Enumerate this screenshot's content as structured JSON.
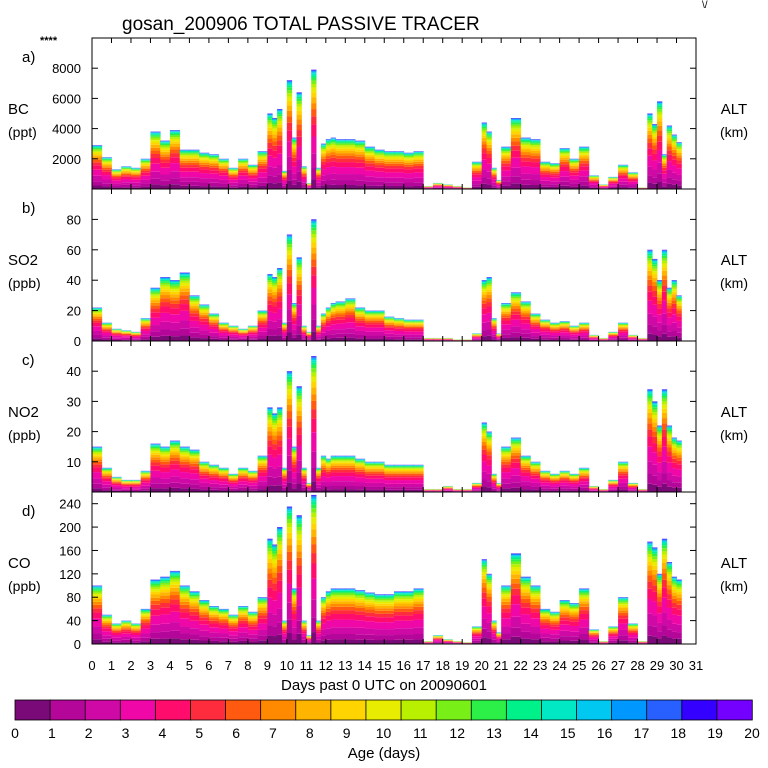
{
  "figure": {
    "title": "gosan_200906 TOTAL PASSIVE TRACER",
    "corner_mark": "****",
    "top_right_mark": "\\/",
    "xlabel": "Days past 0 UTC on 20090601",
    "x_ticks": [
      "0",
      "1",
      "2",
      "3",
      "4",
      "5",
      "6",
      "7",
      "8",
      "9",
      "10",
      "11",
      "12",
      "13",
      "14",
      "15",
      "16",
      "17",
      "18",
      "19",
      "20",
      "21",
      "22",
      "23",
      "24",
      "25",
      "26",
      "27",
      "28",
      "29",
      "30",
      "31"
    ],
    "xlim": [
      0,
      31
    ]
  },
  "colorbar": {
    "label": "Age (days)",
    "tick_labels": [
      "0",
      "1",
      "2",
      "3",
      "4",
      "5",
      "6",
      "7",
      "8",
      "9",
      "10",
      "11",
      "12",
      "13",
      "14",
      "15",
      "16",
      "17",
      "18",
      "19",
      "20"
    ],
    "colors": [
      "#7a0a78",
      "#b4079a",
      "#cf09a6",
      "#f007a8",
      "#ff0c6c",
      "#ff2c3e",
      "#ff5a10",
      "#ff8a00",
      "#ffb400",
      "#ffd400",
      "#e8ec00",
      "#b8f000",
      "#78f018",
      "#2cf048",
      "#00f08a",
      "#00e8c4",
      "#00c8f0",
      "#0098ff",
      "#2860ff",
      "#3400ff",
      "#7400ff"
    ]
  },
  "chart_data": [
    {
      "type": "area",
      "panel_letter": "a)",
      "species": "BC",
      "unit": "(ppt)",
      "right_label": "ALT",
      "right_unit": "(km)",
      "y_tick_labels": [
        "2000",
        "4000",
        "6000",
        "8000"
      ],
      "y_ticks": [
        2000,
        4000,
        6000,
        8000
      ],
      "ylim": [
        0,
        10000
      ],
      "x": [
        0,
        0.5,
        1,
        1.5,
        2,
        2.5,
        3,
        3.5,
        4,
        4.5,
        5,
        5.5,
        6,
        6.5,
        7,
        7.5,
        8,
        8.5,
        9,
        9.25,
        9.5,
        9.75,
        10,
        10.25,
        10.5,
        10.75,
        11,
        11.25,
        11.5,
        11.75,
        12,
        12.25,
        12.5,
        13,
        13.5,
        14,
        14.5,
        15,
        15.5,
        16,
        16.5,
        17,
        17.5,
        18,
        18.5,
        19,
        19.5,
        20,
        20.25,
        20.5,
        20.75,
        21,
        21.5,
        22,
        22.5,
        23,
        23.5,
        24,
        24.5,
        25,
        25.5,
        26,
        26.5,
        27,
        27.5,
        28,
        28.5,
        28.75,
        29,
        29.25,
        29.5,
        29.75,
        30
      ],
      "values": [
        2900,
        2100,
        1300,
        1500,
        1400,
        2000,
        3800,
        3200,
        3900,
        2600,
        2600,
        2400,
        2300,
        2000,
        1400,
        2000,
        1600,
        2500,
        5000,
        4700,
        5300,
        1200,
        7200,
        3400,
        6400,
        1500,
        400,
        7900,
        1400,
        3000,
        3300,
        3400,
        3300,
        3300,
        3200,
        2800,
        2600,
        2500,
        2500,
        2400,
        2500,
        200,
        400,
        300,
        200,
        100,
        1800,
        4400,
        3800,
        1400,
        600,
        2800,
        4700,
        3400,
        3300,
        1800,
        1700,
        2700,
        2000,
        2800,
        900,
        300,
        800,
        1600,
        1100,
        100,
        5000,
        4300,
        5800,
        2300,
        4200,
        3600,
        3100
      ]
    },
    {
      "type": "area",
      "panel_letter": "b)",
      "species": "SO2",
      "unit": "(ppb)",
      "right_label": "ALT",
      "right_unit": "(km)",
      "y_tick_labels": [
        "0",
        "20",
        "40",
        "60",
        "80"
      ],
      "y_ticks": [
        0,
        20,
        40,
        60,
        80
      ],
      "ylim": [
        0,
        100
      ],
      "x": [
        0,
        0.5,
        1,
        1.5,
        2,
        2.5,
        3,
        3.5,
        4,
        4.5,
        5,
        5.5,
        6,
        6.5,
        7,
        7.5,
        8,
        8.5,
        9,
        9.25,
        9.5,
        9.75,
        10,
        10.25,
        10.5,
        10.75,
        11,
        11.25,
        11.5,
        11.75,
        12,
        12.25,
        12.5,
        13,
        13.5,
        14,
        14.5,
        15,
        15.5,
        16,
        16.5,
        17,
        17.5,
        18,
        18.5,
        19,
        19.5,
        20,
        20.25,
        20.5,
        20.75,
        21,
        21.5,
        22,
        22.5,
        23,
        23.5,
        24,
        24.5,
        25,
        25.5,
        26,
        26.5,
        27,
        27.5,
        28,
        28.5,
        28.75,
        29,
        29.25,
        29.5,
        29.75,
        30
      ],
      "values": [
        22,
        12,
        8,
        7,
        6,
        15,
        35,
        42,
        40,
        45,
        30,
        24,
        18,
        12,
        10,
        8,
        10,
        20,
        44,
        42,
        48,
        12,
        70,
        25,
        55,
        10,
        6,
        80,
        10,
        18,
        22,
        25,
        26,
        28,
        22,
        20,
        20,
        16,
        15,
        14,
        14,
        2,
        2,
        2,
        1,
        1,
        5,
        40,
        42,
        15,
        5,
        25,
        32,
        26,
        18,
        14,
        12,
        13,
        10,
        12,
        4,
        2,
        6,
        12,
        4,
        2,
        60,
        54,
        40,
        60,
        35,
        40,
        30
      ]
    },
    {
      "type": "area",
      "panel_letter": "c)",
      "species": "NO2",
      "unit": "(ppb)",
      "right_label": "ALT",
      "right_unit": "(km)",
      "y_tick_labels": [
        "10",
        "20",
        "30",
        "40"
      ],
      "y_ticks": [
        10,
        20,
        30,
        40
      ],
      "ylim": [
        0,
        50
      ],
      "x": [
        0,
        0.5,
        1,
        1.5,
        2,
        2.5,
        3,
        3.5,
        4,
        4.5,
        5,
        5.5,
        6,
        6.5,
        7,
        7.5,
        8,
        8.5,
        9,
        9.25,
        9.5,
        9.75,
        10,
        10.25,
        10.5,
        10.75,
        11,
        11.25,
        11.5,
        11.75,
        12,
        12.25,
        12.5,
        13,
        13.5,
        14,
        14.5,
        15,
        15.5,
        16,
        16.5,
        17,
        17.5,
        18,
        18.5,
        19,
        19.5,
        20,
        20.25,
        20.5,
        20.75,
        21,
        21.5,
        22,
        22.5,
        23,
        23.5,
        24,
        24.5,
        25,
        25.5,
        26,
        26.5,
        27,
        27.5,
        28,
        28.5,
        28.75,
        29,
        29.25,
        29.5,
        29.75,
        30
      ],
      "values": [
        15,
        8,
        5,
        4,
        4,
        7,
        16,
        15,
        17,
        15,
        14,
        10,
        9,
        8,
        6,
        8,
        7,
        12,
        28,
        26,
        28,
        8,
        40,
        15,
        35,
        8,
        3,
        45,
        8,
        12,
        11,
        12,
        12,
        12,
        11,
        10,
        10,
        9,
        9,
        9,
        9,
        1,
        1,
        2,
        1,
        1,
        3,
        23,
        20,
        6,
        3,
        15,
        18,
        12,
        10,
        7,
        6,
        7,
        6,
        8,
        2,
        1,
        4,
        10,
        3,
        1,
        34,
        30,
        22,
        34,
        22,
        18,
        17
      ]
    },
    {
      "type": "area",
      "panel_letter": "d)",
      "species": "CO",
      "unit": "(ppb)",
      "right_label": "ALT",
      "right_unit": "(km)",
      "y_tick_labels": [
        "0",
        "40",
        "80",
        "120",
        "160",
        "200",
        "240"
      ],
      "y_ticks": [
        0,
        40,
        80,
        120,
        160,
        200,
        240
      ],
      "ylim": [
        0,
        260
      ],
      "x": [
        0,
        0.5,
        1,
        1.5,
        2,
        2.5,
        3,
        3.5,
        4,
        4.5,
        5,
        5.5,
        6,
        6.5,
        7,
        7.5,
        8,
        8.5,
        9,
        9.25,
        9.5,
        9.75,
        10,
        10.25,
        10.5,
        10.75,
        11,
        11.25,
        11.5,
        11.75,
        12,
        12.25,
        12.5,
        13,
        13.5,
        14,
        14.5,
        15,
        15.5,
        16,
        16.5,
        17,
        17.5,
        18,
        18.5,
        19,
        19.5,
        20,
        20.25,
        20.5,
        20.75,
        21,
        21.5,
        22,
        22.5,
        23,
        23.5,
        24,
        24.5,
        25,
        25.5,
        26,
        26.5,
        27,
        27.5,
        28,
        28.5,
        28.75,
        29,
        29.25,
        29.5,
        29.75,
        30
      ],
      "values": [
        100,
        50,
        35,
        40,
        35,
        60,
        110,
        115,
        125,
        100,
        90,
        75,
        65,
        60,
        50,
        65,
        55,
        80,
        180,
        170,
        200,
        40,
        235,
        95,
        220,
        40,
        15,
        255,
        40,
        80,
        90,
        95,
        95,
        95,
        92,
        88,
        85,
        85,
        90,
        90,
        95,
        5,
        15,
        8,
        5,
        3,
        30,
        145,
        120,
        40,
        20,
        100,
        155,
        115,
        100,
        60,
        55,
        75,
        70,
        95,
        25,
        5,
        30,
        80,
        35,
        5,
        175,
        165,
        120,
        180,
        140,
        115,
        110
      ]
    }
  ]
}
